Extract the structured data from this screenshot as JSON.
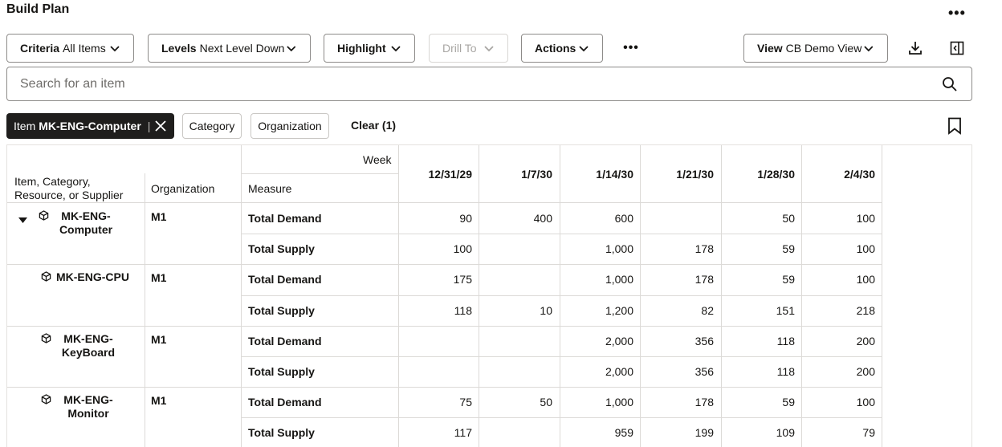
{
  "page": {
    "title": "Build Plan"
  },
  "toolbar": {
    "criteria": {
      "label": "Criteria",
      "value": "All Items"
    },
    "levels": {
      "label": "Levels",
      "value": "Next Level Down"
    },
    "highlight": {
      "label": "Highlight"
    },
    "drill_to": {
      "label": "Drill To"
    },
    "actions": {
      "label": "Actions"
    },
    "view": {
      "label": "View",
      "value": "CB Demo View"
    }
  },
  "search": {
    "placeholder": "Search for an item"
  },
  "filters": {
    "active_chip": {
      "label": "Item",
      "value": "MK-ENG-Computer"
    },
    "chips": [
      "Category",
      "Organization"
    ],
    "clear": "Clear (1)"
  },
  "table": {
    "week_label": "Week",
    "headers": {
      "item": "Item, Category, Resource, or Supplier",
      "organization": "Organization",
      "measure": "Measure"
    },
    "weeks": [
      "12/31/29",
      "1/7/30",
      "1/14/30",
      "1/21/30",
      "1/28/30",
      "2/4/30"
    ],
    "items": [
      {
        "name": "MK-ENG-Computer",
        "org": "M1",
        "expanded": true,
        "measures": [
          {
            "name": "Total Demand",
            "values": [
              "90",
              "400",
              "600",
              "",
              "50",
              "100"
            ]
          },
          {
            "name": "Total Supply",
            "values": [
              "100",
              "",
              "1,000",
              "178",
              "59",
              "100"
            ]
          }
        ]
      },
      {
        "name": "MK-ENG-CPU",
        "org": "M1",
        "measures": [
          {
            "name": "Total Demand",
            "values": [
              "175",
              "",
              "1,000",
              "178",
              "59",
              "100"
            ]
          },
          {
            "name": "Total Supply",
            "values": [
              "118",
              "10",
              "1,200",
              "82",
              "151",
              "218"
            ]
          }
        ]
      },
      {
        "name": "MK-ENG-KeyBoard",
        "org": "M1",
        "measures": [
          {
            "name": "Total Demand",
            "values": [
              "",
              "",
              "2,000",
              "356",
              "118",
              "200"
            ]
          },
          {
            "name": "Total Supply",
            "values": [
              "",
              "",
              "2,000",
              "356",
              "118",
              "200"
            ]
          }
        ]
      },
      {
        "name": "MK-ENG-Monitor",
        "org": "M1",
        "measures": [
          {
            "name": "Total Demand",
            "values": [
              "75",
              "50",
              "1,000",
              "178",
              "59",
              "100"
            ]
          },
          {
            "name": "Total Supply",
            "values": [
              "117",
              "",
              "959",
              "199",
              "109",
              "79"
            ]
          }
        ]
      }
    ]
  },
  "icons": {
    "chevron": "chevron-down-icon",
    "more": "more-horizontal-icon",
    "download": "download-icon",
    "panel": "side-panel-icon",
    "search": "search-icon",
    "close": "close-icon",
    "bookmark": "bookmark-icon",
    "item": "item-cube-icon",
    "expand": "expand-triangle-icon"
  },
  "colors": {
    "chip_bg": "#1f1e1d",
    "border": "#8d8b89",
    "grid_line": "#dcdad7",
    "text": "#161513"
  }
}
